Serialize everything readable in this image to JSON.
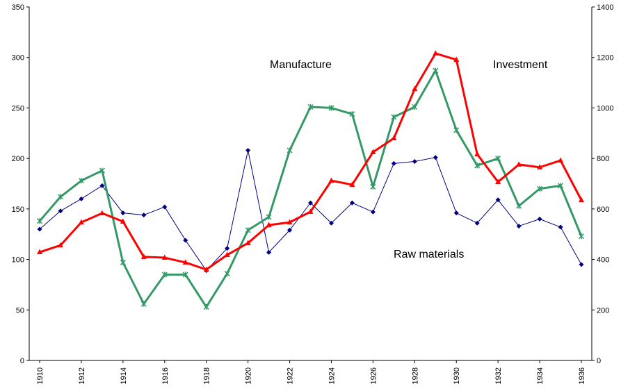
{
  "chart_data": {
    "type": "line",
    "x": [
      1910,
      1911,
      1912,
      1913,
      1914,
      1915,
      1916,
      1917,
      1918,
      1919,
      1920,
      1921,
      1922,
      1923,
      1924,
      1925,
      1926,
      1927,
      1928,
      1929,
      1930,
      1931,
      1932,
      1933,
      1934,
      1935,
      1936
    ],
    "xlim": [
      1910,
      1936
    ],
    "xticks": [
      1910,
      1912,
      1914,
      1916,
      1918,
      1920,
      1922,
      1924,
      1926,
      1928,
      1930,
      1932,
      1934,
      1936
    ],
    "ylim": [
      0,
      350
    ],
    "yticks": [
      0,
      50,
      100,
      150,
      200,
      250,
      300,
      350
    ],
    "y2lim": [
      0,
      1400
    ],
    "y2ticks": [
      0,
      200,
      400,
      600,
      800,
      1000,
      1200,
      1400
    ],
    "series": [
      {
        "name": "Raw materials",
        "color": "#000080",
        "marker": "diamond",
        "values": [
          130,
          148,
          160,
          173,
          146,
          144,
          152,
          119,
          89,
          111,
          208,
          107,
          129,
          156,
          136,
          156,
          147,
          195,
          197,
          201,
          146,
          136,
          159,
          133,
          140,
          132,
          95
        ]
      },
      {
        "name": "Manufacture",
        "color": "#339966",
        "marker": "x",
        "values": [
          138,
          162,
          178,
          188,
          97,
          56,
          85,
          85,
          53,
          86,
          129,
          142,
          208,
          251,
          250,
          244,
          172,
          241,
          251,
          287,
          228,
          193,
          200,
          153,
          170,
          173,
          123
        ]
      },
      {
        "name": "Investment",
        "color": "#ff0000",
        "marker": "triangle",
        "axis": "y2",
        "values": [
          429,
          456,
          547,
          583,
          550,
          410,
          407,
          388,
          360,
          418,
          465,
          536,
          547,
          589,
          712,
          696,
          825,
          880,
          1075,
          1216,
          1191,
          817,
          707,
          776,
          765,
          792,
          635
        ]
      }
    ]
  }
}
